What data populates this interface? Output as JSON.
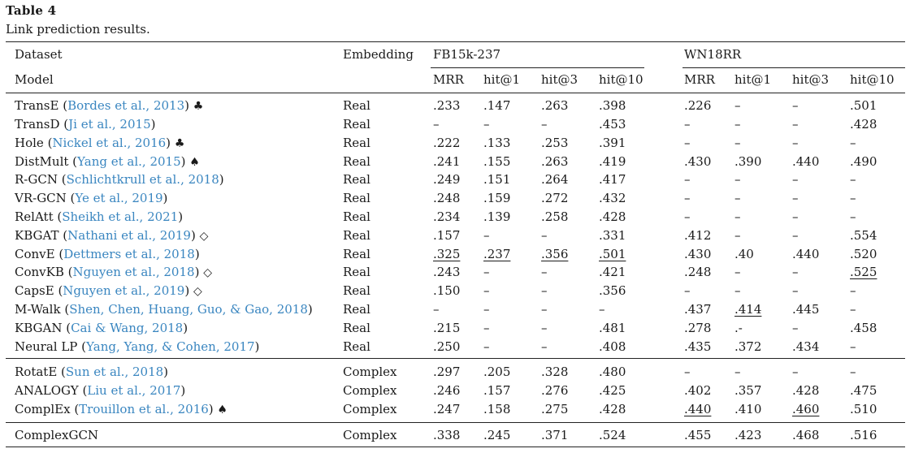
{
  "caption": {
    "title": "Table 4",
    "subtitle": "Link prediction results."
  },
  "header": {
    "dataset": "Dataset",
    "model": "Model",
    "embedding": "Embedding",
    "groups": [
      "FB15k-237",
      "WN18RR"
    ],
    "metrics": [
      "MRR",
      "hit@1",
      "hit@3",
      "hit@10",
      "MRR",
      "hit@1",
      "hit@3",
      "hit@10"
    ]
  },
  "rows": [
    {
      "name": "TransE",
      "cite": "Bordes et al., 2013",
      "suffix": "♣",
      "emb": "Real",
      "vals": [
        ".233",
        ".147",
        ".263",
        ".398",
        ".226",
        "–",
        "–",
        ".501"
      ],
      "underline": []
    },
    {
      "name": "TransD",
      "cite": "Ji et al., 2015",
      "suffix": "",
      "emb": "Real",
      "vals": [
        "–",
        "–",
        "–",
        ".453",
        "–",
        "–",
        "–",
        ".428"
      ],
      "underline": []
    },
    {
      "name": "Hole",
      "cite": "Nickel et al., 2016",
      "suffix": "♣",
      "emb": "Real",
      "vals": [
        ".222",
        ".133",
        ".253",
        ".391",
        "–",
        "–",
        "–",
        "–"
      ],
      "underline": []
    },
    {
      "name": "DistMult",
      "cite": "Yang et al., 2015",
      "suffix": "♠",
      "emb": "Real",
      "vals": [
        ".241",
        ".155",
        ".263",
        ".419",
        ".430",
        ".390",
        ".440",
        ".490"
      ],
      "underline": []
    },
    {
      "name": "R-GCN",
      "cite": "Schlichtkrull et al., 2018",
      "suffix": "",
      "emb": "Real",
      "vals": [
        ".249",
        ".151",
        ".264",
        ".417",
        "–",
        "–",
        "–",
        "–"
      ],
      "underline": []
    },
    {
      "name": "VR-GCN",
      "cite": "Ye et al., 2019",
      "suffix": "",
      "emb": "Real",
      "vals": [
        ".248",
        ".159",
        ".272",
        ".432",
        "–",
        "–",
        "–",
        "–"
      ],
      "underline": []
    },
    {
      "name": "RelAtt",
      "cite": "Sheikh et al., 2021",
      "suffix": "",
      "emb": "Real",
      "vals": [
        ".234",
        ".139",
        ".258",
        ".428",
        "–",
        "–",
        "–",
        "–"
      ],
      "underline": []
    },
    {
      "name": "KBGAT",
      "cite": "Nathani et al., 2019",
      "suffix": "◇",
      "emb": "Real",
      "vals": [
        ".157",
        "–",
        "–",
        ".331",
        ".412",
        "–",
        "–",
        ".554"
      ],
      "underline": []
    },
    {
      "name": "ConvE",
      "cite": "Dettmers et al., 2018",
      "suffix": "",
      "emb": "Real",
      "vals": [
        ".325",
        ".237",
        ".356",
        ".501",
        ".430",
        ".40",
        ".440",
        ".520"
      ],
      "underline": [
        0,
        1,
        2,
        3
      ]
    },
    {
      "name": "ConvKB",
      "cite": "Nguyen et al., 2018",
      "suffix": "◇",
      "emb": "Real",
      "vals": [
        ".243",
        "–",
        "–",
        ".421",
        ".248",
        "–",
        "–",
        ".525"
      ],
      "underline": [
        7
      ]
    },
    {
      "name": "CapsE",
      "cite": "Nguyen et al., 2019",
      "suffix": "◇",
      "emb": "Real",
      "vals": [
        ".150",
        "–",
        "–",
        ".356",
        "–",
        "–",
        "–",
        "–"
      ],
      "underline": []
    },
    {
      "name": "M-Walk",
      "cite": "Shen, Chen, Huang, Guo, & Gao, 2018",
      "suffix": "",
      "emb": "Real",
      "vals": [
        "–",
        "–",
        "–",
        "–",
        ".437",
        ".414",
        ".445",
        "–"
      ],
      "underline": [
        5
      ]
    },
    {
      "name": "KBGAN",
      "cite": "Cai & Wang, 2018",
      "suffix": "",
      "emb": "Real",
      "vals": [
        ".215",
        "–",
        "–",
        ".481",
        ".278",
        ".-",
        "–",
        ".458"
      ],
      "underline": []
    },
    {
      "name": "Neural LP",
      "cite": "Yang, Yang, & Cohen, 2017",
      "suffix": "",
      "emb": "Real",
      "vals": [
        ".250",
        "–",
        "–",
        ".408",
        ".435",
        ".372",
        ".434",
        "–"
      ],
      "underline": []
    },
    {
      "name": "RotatE",
      "cite": "Sun et al., 2018",
      "suffix": "",
      "emb": "Complex",
      "vals": [
        ".297",
        ".205",
        ".328",
        ".480",
        "–",
        "–",
        "–",
        "–"
      ],
      "underline": []
    },
    {
      "name": "ANALOGY",
      "cite": "Liu et al., 2017",
      "suffix": "",
      "emb": "Complex",
      "vals": [
        ".246",
        ".157",
        ".276",
        ".425",
        ".402",
        ".357",
        ".428",
        ".475"
      ],
      "underline": []
    },
    {
      "name": "ComplEx",
      "cite": "Trouillon et al., 2016",
      "suffix": "♠",
      "emb": "Complex",
      "vals": [
        ".247",
        ".158",
        ".275",
        ".428",
        ".440",
        ".410",
        ".460",
        ".510"
      ],
      "underline": [
        4,
        6
      ]
    },
    {
      "name": "ComplexGCN",
      "cite": "",
      "suffix": "",
      "emb": "Complex",
      "vals": [
        ".338",
        ".245",
        ".371",
        ".524",
        ".455",
        ".423",
        ".468",
        ".516"
      ],
      "underline": []
    }
  ]
}
